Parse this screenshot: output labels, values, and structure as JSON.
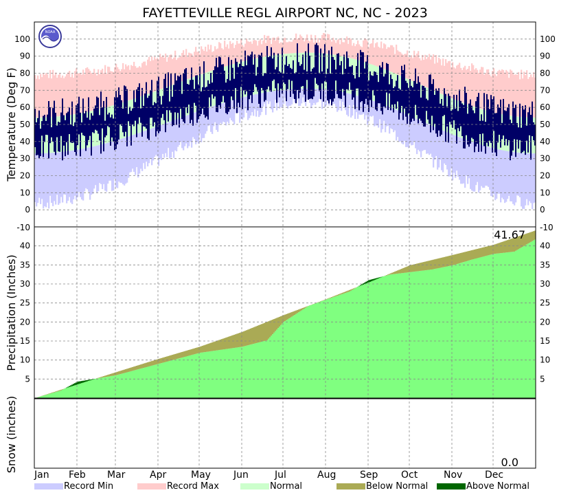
{
  "chart_data": {
    "type": "area",
    "title": "FAYETTEVILLE REGL AIRPORT NC, NC - 2023",
    "months": [
      "Jan",
      "Feb",
      "Mar",
      "Apr",
      "May",
      "Jun",
      "Jul",
      "Aug",
      "Sep",
      "Oct",
      "Nov",
      "Dec"
    ],
    "month_start_day": [
      1,
      32,
      60,
      91,
      121,
      152,
      182,
      213,
      244,
      274,
      305,
      335
    ],
    "days_in_year": 365,
    "legend": [
      {
        "label": "Record Min",
        "color": "#ccccff"
      },
      {
        "label": "Record Max",
        "color": "#ffcccc"
      },
      {
        "label": "Normal",
        "color": "#ccffcc"
      },
      {
        "label": "Below Normal",
        "color": "#aaaa55"
      },
      {
        "label": "Above Normal",
        "color": "#006600"
      }
    ],
    "colors": {
      "observed_temp": "#000066",
      "observed_precip": "#80ff80",
      "record_min": "#ccccff",
      "record_max": "#ffcccc",
      "normal": "#ccffcc",
      "below_normal": "#aaaa55",
      "above_normal": "#006600"
    },
    "temperature": {
      "ylabel": "Temperature (Deg F)",
      "ylim": [
        -10,
        110
      ],
      "ticks": [
        -10,
        0,
        10,
        20,
        30,
        40,
        50,
        60,
        70,
        80,
        90,
        100
      ],
      "record_max_seasonal": {
        "day": [
          1,
          200,
          365
        ],
        "value": [
          79,
          101,
          79
        ],
        "noise": 3
      },
      "record_min_seasonal": {
        "day": [
          1,
          200,
          365
        ],
        "value": [
          4,
          63,
          4
        ],
        "noise": 4
      },
      "normal_high_seasonal": {
        "day": [
          1,
          200,
          365
        ],
        "value": [
          54,
          92,
          54
        ]
      },
      "normal_low_seasonal": {
        "day": [
          1,
          200,
          365
        ],
        "value": [
          33,
          71,
          33
        ]
      },
      "observed_high_mean_seasonal": {
        "day": [
          1,
          200,
          365
        ],
        "value": [
          56,
          89,
          55
        ],
        "noise": 9
      },
      "observed_low_mean_seasonal": {
        "day": [
          1,
          200,
          365
        ],
        "value": [
          36,
          70,
          36
        ],
        "noise": 8
      }
    },
    "precipitation": {
      "ylabel": "Precipitation (Inches)",
      "ylim": [
        0,
        45
      ],
      "ticks": [
        5,
        10,
        15,
        20,
        25,
        30,
        35,
        40
      ],
      "ytick_label_min": [
        -10
      ],
      "year_to_date_total_label": "41.67",
      "observed_cumulative": {
        "day": [
          1,
          20,
          32,
          60,
          91,
          121,
          152,
          170,
          182,
          200,
          213,
          230,
          244,
          260,
          274,
          290,
          305,
          320,
          335,
          350,
          365
        ],
        "value": [
          0.0,
          2.0,
          4.3,
          6.0,
          9.0,
          11.9,
          13.5,
          15.2,
          20.0,
          24.2,
          25.9,
          28.0,
          31.0,
          32.5,
          33.1,
          33.8,
          34.9,
          36.5,
          37.9,
          38.5,
          41.67
        ]
      },
      "normal_cumulative": {
        "day": [
          1,
          32,
          60,
          91,
          121,
          152,
          182,
          213,
          244,
          274,
          305,
          335,
          365
        ],
        "value": [
          0.0,
          3.6,
          6.8,
          10.3,
          13.5,
          17.4,
          21.8,
          26.0,
          30.4,
          34.9,
          37.6,
          40.3,
          44.0
        ]
      }
    },
    "snow": {
      "ylabel": "Snow (inches)",
      "total_label": "0.0"
    }
  }
}
